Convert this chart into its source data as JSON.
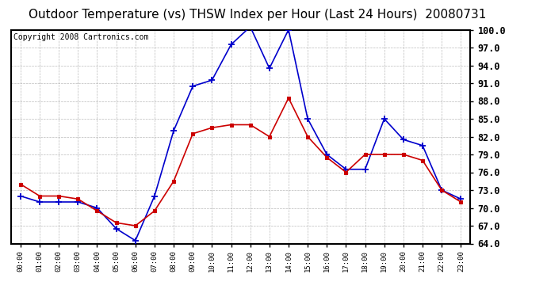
{
  "title": "Outdoor Temperature (vs) THSW Index per Hour (Last 24 Hours)  20080731",
  "copyright": "Copyright 2008 Cartronics.com",
  "hours": [
    "00:00",
    "01:00",
    "02:00",
    "03:00",
    "04:00",
    "05:00",
    "06:00",
    "07:00",
    "08:00",
    "09:00",
    "10:00",
    "11:00",
    "12:00",
    "13:00",
    "14:00",
    "15:00",
    "16:00",
    "17:00",
    "18:00",
    "19:00",
    "20:00",
    "21:00",
    "22:00",
    "23:00"
  ],
  "temp": [
    74.0,
    72.0,
    72.0,
    71.5,
    69.5,
    67.5,
    67.0,
    69.5,
    74.5,
    82.5,
    83.5,
    84.0,
    84.0,
    82.0,
    88.5,
    82.0,
    78.5,
    76.0,
    79.0,
    79.0,
    79.0,
    78.0,
    73.0,
    71.0
  ],
  "thsw": [
    72.0,
    71.0,
    71.0,
    71.0,
    70.0,
    66.5,
    64.5,
    72.0,
    83.0,
    90.5,
    91.5,
    97.5,
    100.5,
    93.5,
    100.0,
    85.0,
    79.0,
    76.5,
    76.5,
    85.0,
    81.5,
    80.5,
    73.0,
    71.5
  ],
  "temp_color": "#cc0000",
  "thsw_color": "#0000cc",
  "ylim_min": 64.0,
  "ylim_max": 100.0,
  "yticks": [
    64.0,
    67.0,
    70.0,
    73.0,
    76.0,
    79.0,
    82.0,
    85.0,
    88.0,
    91.0,
    94.0,
    97.0,
    100.0
  ],
  "background_color": "#ffffff",
  "plot_bg_color": "#ffffff",
  "grid_color": "#aaaaaa",
  "title_fontsize": 11,
  "copyright_fontsize": 7,
  "marker_size": 4,
  "line_width": 1.2
}
